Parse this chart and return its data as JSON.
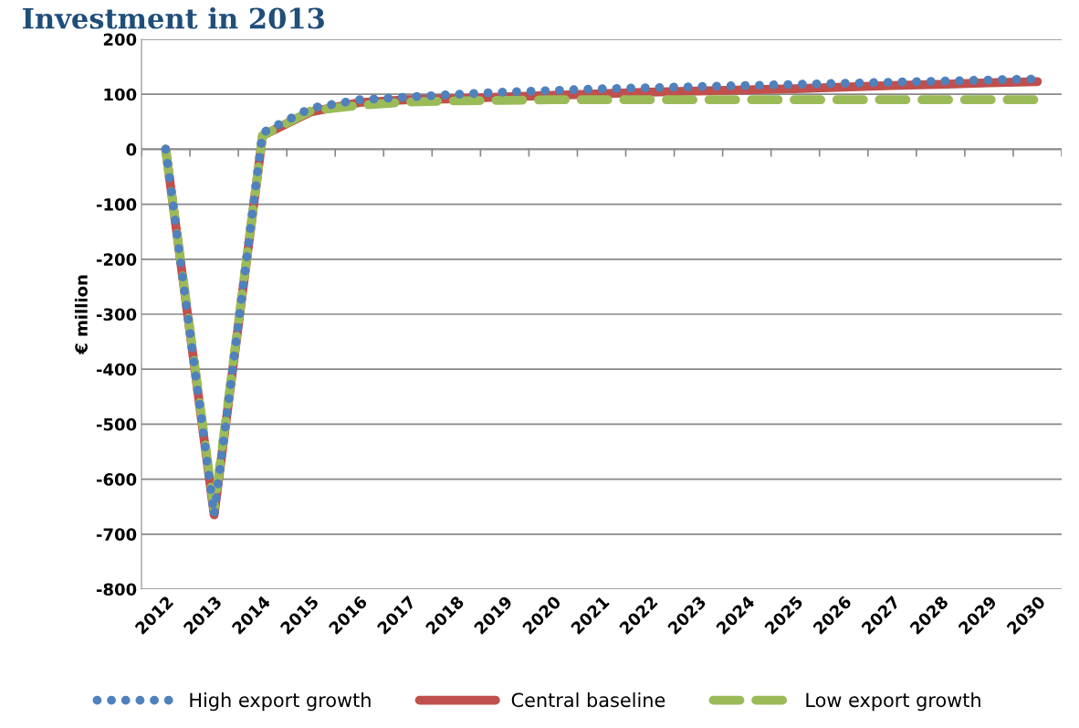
{
  "chart_data": {
    "type": "line",
    "title": "Investment in 2013",
    "ylabel": "€ million",
    "categories": [
      "2012",
      "2013",
      "2014",
      "2015",
      "2016",
      "2017",
      "2018",
      "2019",
      "2020",
      "2021",
      "2022",
      "2023",
      "2024",
      "2025",
      "2026",
      "2027",
      "2028",
      "2029",
      "2030"
    ],
    "series": [
      {
        "name": "High export growth",
        "color": "#4f81bd",
        "line_style": "dotted",
        "values": [
          0,
          -665,
          30,
          75,
          90,
          95,
          100,
          104,
          107,
          110,
          112,
          114,
          116,
          118,
          120,
          122,
          124,
          126,
          128
        ]
      },
      {
        "name": "Central baseline",
        "color": "#c0504d",
        "line_style": "solid",
        "values": [
          0,
          -665,
          25,
          68,
          85,
          90,
          92,
          95,
          98,
          101,
          104,
          106,
          108,
          110,
          113,
          116,
          118,
          121,
          123
        ]
      },
      {
        "name": "Low export growth",
        "color": "#9bbb59",
        "line_style": "dashed",
        "values": [
          0,
          -655,
          25,
          70,
          80,
          86,
          88,
          89,
          90,
          90,
          90,
          90,
          90,
          90,
          90,
          90,
          90,
          90,
          90
        ]
      }
    ],
    "ylim": [
      -800,
      200
    ],
    "yticks": [
      -800,
      -700,
      -600,
      -500,
      -400,
      -300,
      -200,
      -100,
      0,
      100,
      200
    ],
    "grid": "y",
    "legend": "bottom"
  }
}
